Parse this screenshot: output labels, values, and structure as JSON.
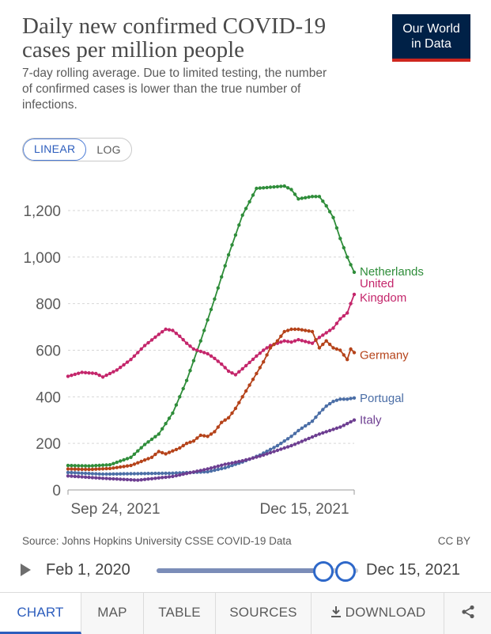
{
  "header": {
    "title": "Daily new confirmed COVID-19 cases per million people",
    "subtitle": "7-day rolling average. Due to limited testing, the number of confirmed cases is lower than the true number of infections.",
    "logo_line1": "Our World",
    "logo_line2": "in Data"
  },
  "scale_toggle": {
    "linear_label": "LINEAR",
    "log_label": "LOG",
    "selected": "LINEAR"
  },
  "chart_data": {
    "type": "line",
    "title": "Daily new confirmed COVID-19 cases per million people",
    "xlabel": "",
    "ylabel": "",
    "x_start_label": "Sep 24, 2021",
    "x_end_label": "Dec 15, 2021",
    "x_days": 82,
    "y_ticks": [
      0,
      200,
      400,
      600,
      800,
      1000,
      1200
    ],
    "y_tick_labels": [
      "0",
      "200",
      "400",
      "600",
      "800",
      "1,000",
      "1,200"
    ],
    "ylim": [
      0,
      1300
    ],
    "grid": true,
    "series": [
      {
        "name": "Netherlands",
        "label": "Netherlands",
        "color": "#2f8d3a",
        "day": [
          0,
          6,
          12,
          18,
          22,
          26,
          30,
          34,
          38,
          42,
          46,
          50,
          54,
          58,
          62,
          64,
          66,
          68,
          70,
          72,
          74,
          76,
          78,
          80,
          82
        ],
        "values": [
          105,
          103,
          108,
          140,
          195,
          240,
          330,
          470,
          640,
          820,
          1010,
          1180,
          1295,
          1300,
          1305,
          1290,
          1250,
          1255,
          1260,
          1260,
          1220,
          1170,
          1080,
          1000,
          935
        ]
      },
      {
        "name": "United Kingdom",
        "label_line1": "United",
        "label_line2": "Kingdom",
        "color": "#c4266b",
        "day": [
          0,
          4,
          8,
          10,
          14,
          18,
          22,
          26,
          28,
          30,
          32,
          34,
          36,
          40,
          42,
          44,
          46,
          48,
          50,
          54,
          56,
          58,
          62,
          64,
          66,
          70,
          72,
          76,
          78,
          80,
          82
        ],
        "values": [
          488,
          505,
          500,
          485,
          515,
          560,
          620,
          668,
          690,
          685,
          660,
          630,
          605,
          585,
          565,
          540,
          510,
          495,
          520,
          575,
          600,
          620,
          640,
          635,
          645,
          630,
          655,
          695,
          735,
          760,
          840
        ]
      },
      {
        "name": "Germany",
        "label": "Germany",
        "color": "#b5431a",
        "day": [
          0,
          6,
          12,
          18,
          24,
          26,
          28,
          32,
          34,
          36,
          38,
          40,
          42,
          44,
          46,
          48,
          50,
          52,
          56,
          58,
          60,
          62,
          64,
          66,
          68,
          70,
          72,
          74,
          76,
          78,
          80,
          81,
          82
        ],
        "values": [
          90,
          88,
          92,
          105,
          140,
          165,
          155,
          180,
          200,
          210,
          235,
          230,
          250,
          290,
          310,
          350,
          400,
          450,
          550,
          610,
          640,
          680,
          690,
          690,
          685,
          680,
          610,
          640,
          610,
          600,
          560,
          605,
          590
        ]
      },
      {
        "name": "Portugal",
        "label": "Portugal",
        "color": "#4b6ea6",
        "day": [
          0,
          10,
          20,
          30,
          40,
          45,
          50,
          55,
          60,
          62,
          64,
          66,
          68,
          70,
          72,
          74,
          76,
          78,
          80,
          82
        ],
        "values": [
          75,
          68,
          70,
          72,
          78,
          95,
          120,
          150,
          190,
          210,
          230,
          255,
          275,
          295,
          330,
          360,
          380,
          390,
          390,
          395
        ]
      },
      {
        "name": "Italy",
        "label": "Italy",
        "color": "#6d3e91",
        "day": [
          0,
          10,
          20,
          30,
          40,
          45,
          50,
          55,
          60,
          64,
          68,
          72,
          76,
          78,
          80,
          82
        ],
        "values": [
          60,
          50,
          42,
          58,
          90,
          110,
          125,
          145,
          170,
          190,
          215,
          240,
          260,
          270,
          285,
          300
        ]
      }
    ]
  },
  "footer": {
    "source": "Source: Johns Hopkins University CSSE COVID-19 Data",
    "license": "CC BY"
  },
  "timeline": {
    "start_label": "Feb 1, 2020",
    "end_label": "Dec 15, 2021"
  },
  "tabs": [
    {
      "label": "CHART"
    },
    {
      "label": "MAP"
    },
    {
      "label": "TABLE"
    },
    {
      "label": "SOURCES"
    },
    {
      "label": "DOWNLOAD",
      "icon": "download-icon"
    },
    {
      "icon": "share-icon"
    }
  ]
}
